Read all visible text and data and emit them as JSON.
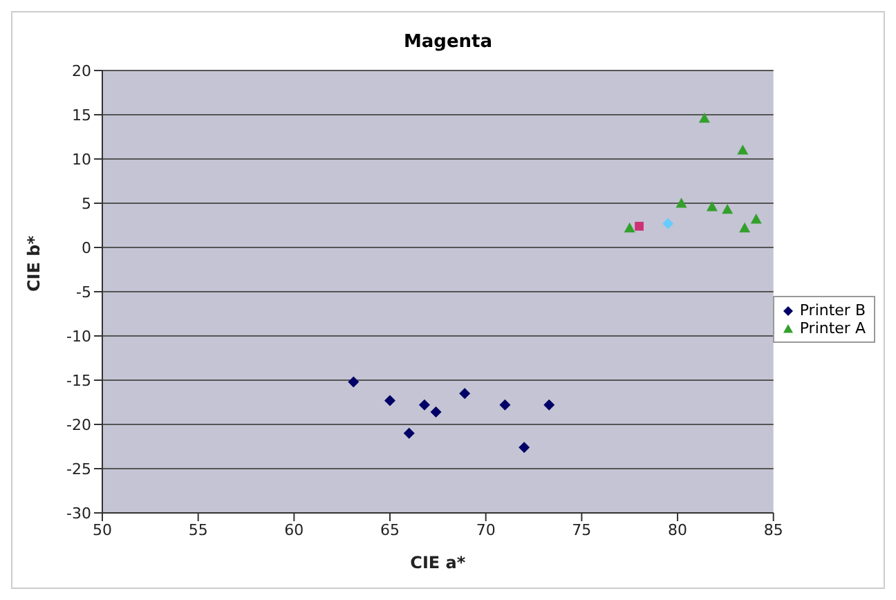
{
  "chart_data": {
    "type": "scatter",
    "title": "Magenta",
    "xlabel": "CIE a*",
    "ylabel": "CIE b*",
    "xlim": [
      50,
      85
    ],
    "xticks": [
      50,
      55,
      60,
      65,
      70,
      75,
      80,
      85
    ],
    "ylim": [
      -30,
      20
    ],
    "yticks": [
      -30,
      -25,
      -20,
      -15,
      -10,
      -5,
      0,
      5,
      10,
      15,
      20
    ],
    "grid": "y",
    "legend": "right",
    "series": [
      {
        "name": "Printer B",
        "color": "#000066",
        "marker": "diamond",
        "x": [
          63.1,
          65.0,
          66.0,
          66.8,
          67.4,
          68.9,
          71.0,
          72.0,
          73.3
        ],
        "values": [
          -15.2,
          -17.3,
          -21.0,
          -17.8,
          -18.6,
          -16.5,
          -17.8,
          -22.6,
          -17.8
        ]
      },
      {
        "name": "Printer A",
        "color": "#33a02c",
        "marker": "triangle",
        "x": [
          81.4,
          83.4,
          80.2,
          81.8,
          82.6,
          84.1,
          83.5,
          77.5
        ],
        "values": [
          14.6,
          11.0,
          5.0,
          4.6,
          4.3,
          3.2,
          2.2,
          2.2
        ]
      },
      {
        "color": "#cc3377",
        "marker": "square",
        "x": [
          78.0
        ],
        "values": [
          2.4
        ]
      },
      {
        "color": "#66ccff",
        "marker": "diamond",
        "x": [
          79.5
        ],
        "values": [
          2.7
        ]
      }
    ]
  }
}
